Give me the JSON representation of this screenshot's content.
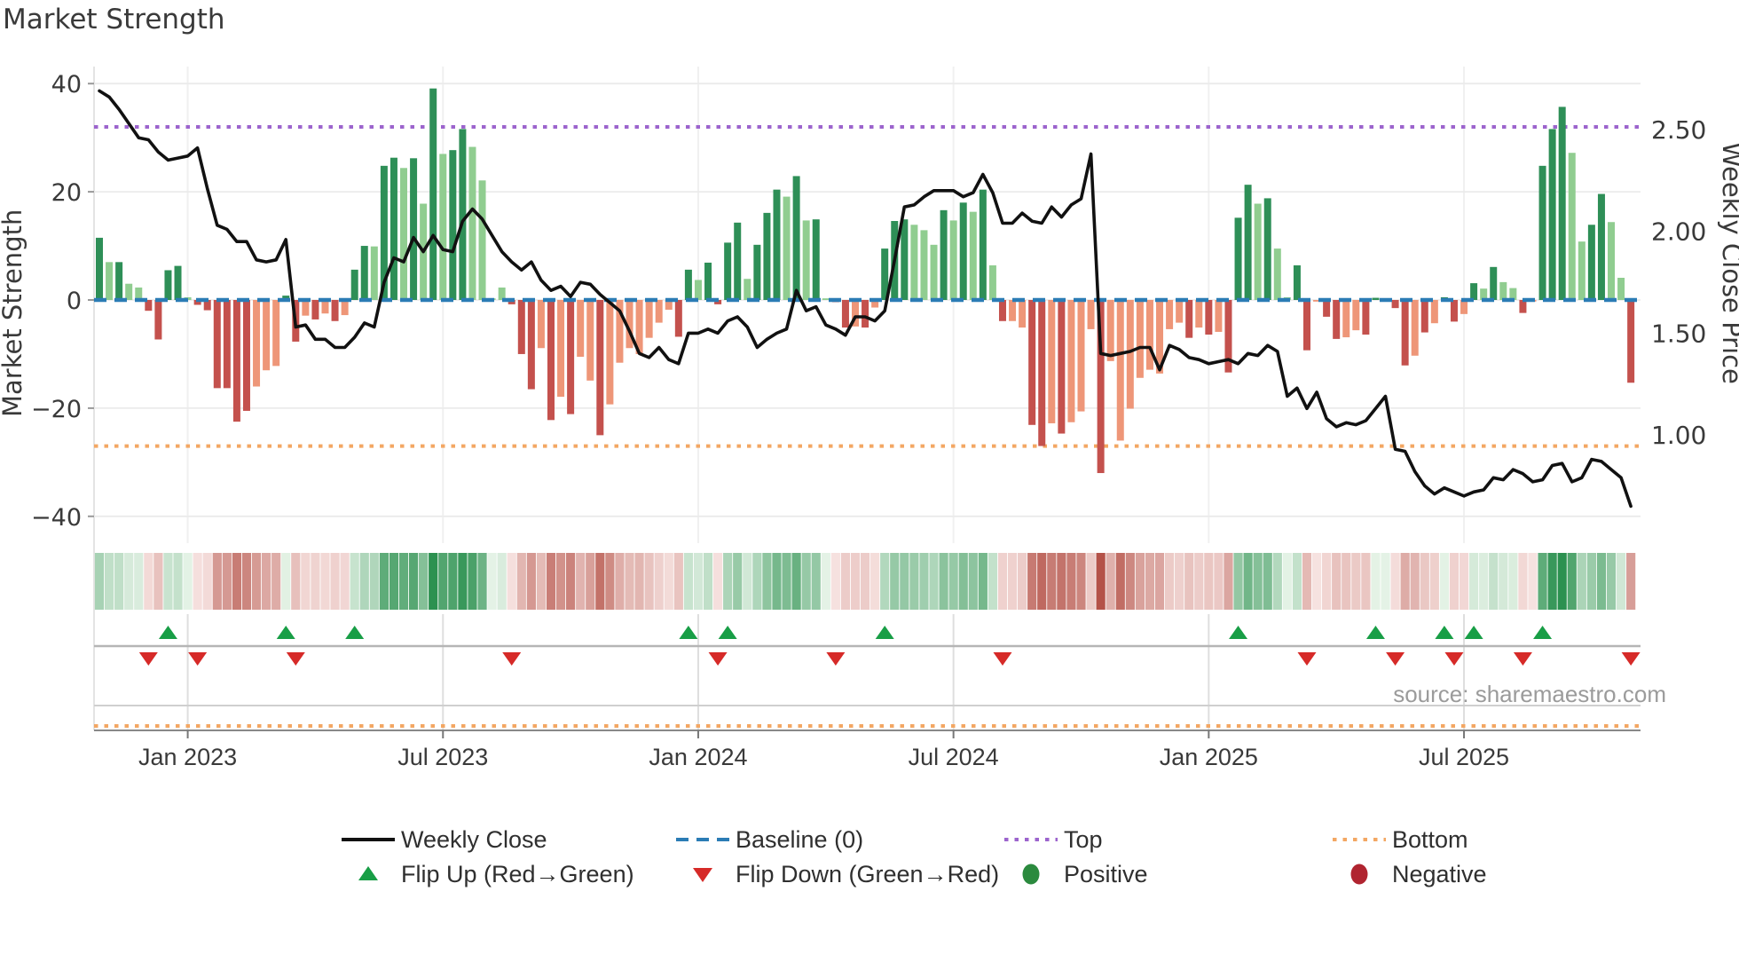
{
  "title": "Market Strength",
  "source": "source: sharemaestro.com",
  "axes": {
    "left_label": "Market Strength",
    "right_label": "Weekly Close Price",
    "left_ticks": [
      "40",
      "20",
      "0",
      "−20",
      "−40"
    ],
    "left_tick_values": [
      40,
      20,
      0,
      -20,
      -40
    ],
    "right_ticks": [
      "2.50",
      "2.00",
      "1.50",
      "1.00"
    ],
    "right_tick_values": [
      2.5,
      2.0,
      1.5,
      1.0
    ],
    "x_ticks": [
      "Jan 2023",
      "Jul 2023",
      "Jan 2024",
      "Jul 2024",
      "Jan 2025",
      "Jul 2025"
    ],
    "x_tick_weeks": [
      9,
      35,
      61,
      87,
      113,
      139
    ]
  },
  "colors": {
    "dark_green": "#2e8f57",
    "light_green": "#90cd90",
    "dark_red": "#c4514d",
    "light_red": "#ee9678",
    "line": "#111111",
    "baseline": "#2b7cb5",
    "top": "#9c64cd",
    "bottom": "#f3a763",
    "flip_up": "#189e46",
    "flip_down": "#d62a28",
    "positive_dot": "#2b8a3e",
    "negative_dot": "#b02430",
    "heat_green_hi": "#2c9150",
    "heat_green_lo": "#e6f3e7",
    "heat_red_hi": "#b0493e",
    "heat_red_lo": "#f7e3e1",
    "grid": "#ebebeb",
    "grid_dark": "#dedede",
    "spine": "#888888"
  },
  "legend": {
    "rows": [
      {
        "items": [
          {
            "type": "line",
            "label": "Weekly Close"
          },
          {
            "type": "dashed-blue",
            "label": "Baseline (0)"
          },
          {
            "type": "dotted-purple",
            "label": "Top"
          },
          {
            "type": "dotted-orange",
            "label": "Bottom"
          }
        ]
      },
      {
        "items": [
          {
            "type": "tri-up",
            "label": "Flip Up (Red→Green)"
          },
          {
            "type": "tri-down",
            "label": "Flip Down (Green→Red)"
          },
          {
            "type": "dot-green",
            "label": "Positive"
          },
          {
            "type": "dot-red",
            "label": "Negative"
          }
        ]
      }
    ]
  },
  "chart_data": {
    "type": "bar+line",
    "x_unit": "week",
    "n_weeks": 157,
    "title": "Market Strength",
    "ylabel_left": "Market Strength",
    "ylabel_right": "Weekly Close Price",
    "strength_ylim": [
      -45,
      43
    ],
    "price_ylim": [
      0.47,
      2.81
    ],
    "baseline": 0,
    "top_threshold": 32,
    "bottom_threshold": -27,
    "grid": true,
    "legend_position": "bottom",
    "bars": [
      [
        11.5,
        "d"
      ],
      [
        7,
        "l"
      ],
      [
        7,
        "d"
      ],
      [
        3,
        "l"
      ],
      [
        2.3,
        "l"
      ],
      [
        -2,
        "d"
      ],
      [
        -7.3,
        "d"
      ],
      [
        5.5,
        "d"
      ],
      [
        6.3,
        "d"
      ],
      [
        0.5,
        "l"
      ],
      [
        -0.9,
        "d"
      ],
      [
        -1.9,
        "d"
      ],
      [
        -16.3,
        "d"
      ],
      [
        -16.3,
        "d"
      ],
      [
        -22.5,
        "d"
      ],
      [
        -20.5,
        "d"
      ],
      [
        -16,
        "l"
      ],
      [
        -13,
        "l"
      ],
      [
        -12.2,
        "l"
      ],
      [
        0.8,
        "d"
      ],
      [
        -7.7,
        "d"
      ],
      [
        -2.9,
        "l"
      ],
      [
        -3.6,
        "d"
      ],
      [
        -2.5,
        "l"
      ],
      [
        -3.9,
        "d"
      ],
      [
        -2.8,
        "l"
      ],
      [
        5.6,
        "d"
      ],
      [
        10,
        "d"
      ],
      [
        9.9,
        "l"
      ],
      [
        24.8,
        "d"
      ],
      [
        26.3,
        "d"
      ],
      [
        24.4,
        "l"
      ],
      [
        26.2,
        "d"
      ],
      [
        17.8,
        "l"
      ],
      [
        39.1,
        "d"
      ],
      [
        27,
        "l"
      ],
      [
        27.7,
        "d"
      ],
      [
        31.6,
        "d"
      ],
      [
        28.3,
        "l"
      ],
      [
        22.1,
        "l"
      ],
      [
        0.3,
        "l"
      ],
      [
        2.3,
        "l"
      ],
      [
        -0.8,
        "d"
      ],
      [
        -10,
        "d"
      ],
      [
        -16.5,
        "d"
      ],
      [
        -8.9,
        "l"
      ],
      [
        -22.2,
        "d"
      ],
      [
        -17.9,
        "l"
      ],
      [
        -21.1,
        "d"
      ],
      [
        -10.5,
        "l"
      ],
      [
        -14.9,
        "l"
      ],
      [
        -25,
        "d"
      ],
      [
        -19.3,
        "l"
      ],
      [
        -11.6,
        "l"
      ],
      [
        -8.9,
        "l"
      ],
      [
        -10,
        "l"
      ],
      [
        -7,
        "l"
      ],
      [
        -4.2,
        "l"
      ],
      [
        -1.8,
        "l"
      ],
      [
        -6.8,
        "d"
      ],
      [
        5.6,
        "d"
      ],
      [
        3.7,
        "l"
      ],
      [
        6.9,
        "d"
      ],
      [
        -0.8,
        "d"
      ],
      [
        10.6,
        "d"
      ],
      [
        14.3,
        "d"
      ],
      [
        3.9,
        "l"
      ],
      [
        10.2,
        "d"
      ],
      [
        16.1,
        "d"
      ],
      [
        20.4,
        "d"
      ],
      [
        19.1,
        "l"
      ],
      [
        22.9,
        "d"
      ],
      [
        14.7,
        "l"
      ],
      [
        14.9,
        "d"
      ],
      [
        0.3,
        "l"
      ],
      [
        -0.4,
        "d"
      ],
      [
        -5.1,
        "d"
      ],
      [
        -4.9,
        "l"
      ],
      [
        -5.1,
        "d"
      ],
      [
        -1.4,
        "l"
      ],
      [
        9.5,
        "d"
      ],
      [
        14.6,
        "d"
      ],
      [
        14.9,
        "d"
      ],
      [
        13.9,
        "l"
      ],
      [
        12.9,
        "l"
      ],
      [
        10.2,
        "l"
      ],
      [
        16.6,
        "d"
      ],
      [
        14.7,
        "l"
      ],
      [
        18,
        "d"
      ],
      [
        16.3,
        "l"
      ],
      [
        20.4,
        "d"
      ],
      [
        6.4,
        "l"
      ],
      [
        -3.9,
        "d"
      ],
      [
        -3.9,
        "l"
      ],
      [
        -5.1,
        "l"
      ],
      [
        -23.1,
        "d"
      ],
      [
        -27,
        "d"
      ],
      [
        -22.8,
        "l"
      ],
      [
        -24.7,
        "d"
      ],
      [
        -22.6,
        "l"
      ],
      [
        -20.6,
        "l"
      ],
      [
        -5.4,
        "l"
      ],
      [
        -32,
        "d"
      ],
      [
        -11.3,
        "l"
      ],
      [
        -26,
        "l"
      ],
      [
        -20.1,
        "l"
      ],
      [
        -14.4,
        "l"
      ],
      [
        -12.9,
        "l"
      ],
      [
        -13.6,
        "l"
      ],
      [
        -5.4,
        "l"
      ],
      [
        -4.2,
        "l"
      ],
      [
        -7,
        "d"
      ],
      [
        -5.1,
        "l"
      ],
      [
        -6.4,
        "d"
      ],
      [
        -5.9,
        "l"
      ],
      [
        -13.4,
        "d"
      ],
      [
        15.2,
        "d"
      ],
      [
        21.3,
        "d"
      ],
      [
        17.8,
        "l"
      ],
      [
        18.8,
        "d"
      ],
      [
        9.5,
        "l"
      ],
      [
        0.5,
        "l"
      ],
      [
        6.4,
        "d"
      ],
      [
        -9.3,
        "d"
      ],
      [
        -0.3,
        "l"
      ],
      [
        -3.1,
        "d"
      ],
      [
        -7.2,
        "d"
      ],
      [
        -6.9,
        "l"
      ],
      [
        -5.6,
        "l"
      ],
      [
        -6.4,
        "d"
      ],
      [
        0.4,
        "d"
      ],
      [
        0.3,
        "l"
      ],
      [
        -1.5,
        "d"
      ],
      [
        -12.1,
        "d"
      ],
      [
        -10.3,
        "l"
      ],
      [
        -6,
        "d"
      ],
      [
        -4.3,
        "l"
      ],
      [
        0.5,
        "d"
      ],
      [
        -4,
        "d"
      ],
      [
        -2.6,
        "l"
      ],
      [
        3.1,
        "d"
      ],
      [
        2.1,
        "l"
      ],
      [
        6.1,
        "d"
      ],
      [
        3.3,
        "l"
      ],
      [
        2.2,
        "l"
      ],
      [
        -2.4,
        "d"
      ],
      [
        -0.3,
        "l"
      ],
      [
        24.8,
        "d"
      ],
      [
        31.6,
        "d"
      ],
      [
        35.7,
        "d"
      ],
      [
        27.2,
        "l"
      ],
      [
        10.8,
        "l"
      ],
      [
        13.9,
        "d"
      ],
      [
        19.6,
        "d"
      ],
      [
        14.4,
        "l"
      ],
      [
        4.1,
        "l"
      ],
      [
        -15.3,
        "d"
      ]
    ],
    "weekly_close": [
      2.69,
      2.66,
      2.6,
      2.53,
      2.46,
      2.45,
      2.39,
      2.35,
      2.36,
      2.37,
      2.41,
      2.21,
      2.03,
      2.01,
      1.95,
      1.95,
      1.86,
      1.85,
      1.86,
      1.96,
      1.53,
      1.54,
      1.47,
      1.47,
      1.43,
      1.43,
      1.48,
      1.55,
      1.53,
      1.75,
      1.87,
      1.85,
      1.97,
      1.9,
      1.98,
      1.91,
      1.9,
      2.05,
      2.11,
      2.06,
      1.98,
      1.9,
      1.85,
      1.81,
      1.85,
      1.76,
      1.71,
      1.73,
      1.68,
      1.75,
      1.74,
      1.69,
      1.65,
      1.61,
      1.51,
      1.4,
      1.38,
      1.43,
      1.37,
      1.35,
      1.5,
      1.5,
      1.52,
      1.5,
      1.56,
      1.58,
      1.53,
      1.43,
      1.47,
      1.5,
      1.52,
      1.71,
      1.61,
      1.63,
      1.54,
      1.52,
      1.49,
      1.58,
      1.58,
      1.56,
      1.61,
      1.86,
      2.12,
      2.13,
      2.17,
      2.2,
      2.2,
      2.2,
      2.17,
      2.19,
      2.28,
      2.19,
      2.04,
      2.04,
      2.09,
      2.05,
      2.04,
      2.12,
      2.07,
      2.13,
      2.16,
      2.38,
      1.4,
      1.39,
      1.4,
      1.41,
      1.43,
      1.43,
      1.32,
      1.44,
      1.42,
      1.38,
      1.37,
      1.35,
      1.36,
      1.37,
      1.35,
      1.4,
      1.39,
      1.44,
      1.41,
      1.19,
      1.23,
      1.13,
      1.21,
      1.08,
      1.04,
      1.06,
      1.05,
      1.07,
      1.13,
      1.19,
      0.93,
      0.92,
      0.82,
      0.75,
      0.71,
      0.74,
      0.72,
      0.7,
      0.72,
      0.73,
      0.79,
      0.78,
      0.83,
      0.81,
      0.77,
      0.78,
      0.85,
      0.86,
      0.77,
      0.79,
      0.88,
      0.87,
      0.83,
      0.79,
      0.65
    ],
    "flip_up_weeks": [
      7,
      19,
      26,
      60,
      64,
      80,
      116,
      130,
      137,
      140,
      147
    ],
    "flip_down_weeks": [
      5,
      10,
      20,
      42,
      63,
      75,
      92,
      123,
      132,
      138,
      145,
      156
    ]
  }
}
